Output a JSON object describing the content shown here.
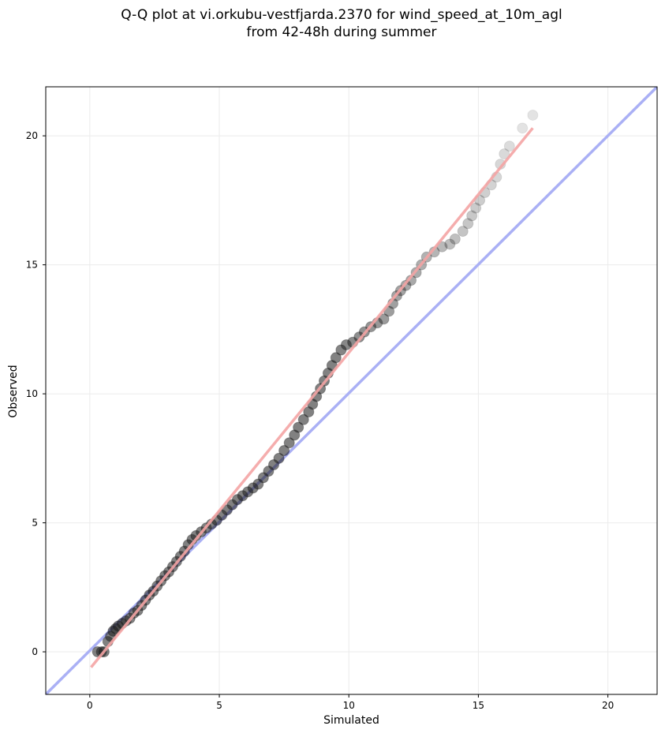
{
  "chart_data": {
    "type": "scatter",
    "title_line1": "Q-Q plot at vi.orkubu-vestfjarda.2370 for wind_speed_at_10m_agl",
    "title_line2": "from 42-48h during summer",
    "xlabel": "Simulated",
    "ylabel": "Observed",
    "xlim": [
      -1.7,
      21.9
    ],
    "ylim": [
      -1.65,
      21.9
    ],
    "xticks": [
      0,
      5,
      10,
      15,
      20
    ],
    "yticks": [
      0,
      5,
      10,
      15,
      20
    ],
    "grid": true,
    "identity_line": {
      "color": "#aab0f5",
      "from": [
        -1.7,
        -1.65
      ],
      "to": [
        21.9,
        21.9
      ]
    },
    "fit_line": {
      "color": "#f4a4a4",
      "from": [
        0.05,
        -0.6
      ],
      "to": [
        17.1,
        20.3
      ]
    },
    "series": [
      {
        "points": [
          [
            0.3,
            0.0
          ],
          [
            0.45,
            0.0
          ],
          [
            0.55,
            0.0
          ],
          [
            0.7,
            0.4
          ],
          [
            0.8,
            0.6
          ],
          [
            0.9,
            0.8
          ],
          [
            1.0,
            0.9
          ],
          [
            1.1,
            1.0
          ],
          [
            1.25,
            1.1
          ],
          [
            1.4,
            1.2
          ],
          [
            1.55,
            1.3
          ],
          [
            1.7,
            1.5
          ],
          [
            1.85,
            1.6
          ],
          [
            2.0,
            1.8
          ],
          [
            2.15,
            2.0
          ],
          [
            2.3,
            2.2
          ],
          [
            2.45,
            2.35
          ],
          [
            2.6,
            2.55
          ],
          [
            2.75,
            2.75
          ],
          [
            2.9,
            2.95
          ],
          [
            3.05,
            3.1
          ],
          [
            3.2,
            3.3
          ],
          [
            3.35,
            3.5
          ],
          [
            3.5,
            3.7
          ],
          [
            3.65,
            3.9
          ],
          [
            3.8,
            4.15
          ],
          [
            3.95,
            4.35
          ],
          [
            4.1,
            4.5
          ],
          [
            4.3,
            4.65
          ],
          [
            4.5,
            4.8
          ],
          [
            4.7,
            4.95
          ],
          [
            4.9,
            5.1
          ],
          [
            5.1,
            5.3
          ],
          [
            5.3,
            5.5
          ],
          [
            5.5,
            5.7
          ],
          [
            5.7,
            5.9
          ],
          [
            5.9,
            6.05
          ],
          [
            6.1,
            6.2
          ],
          [
            6.3,
            6.35
          ],
          [
            6.5,
            6.5
          ],
          [
            6.7,
            6.75
          ],
          [
            6.9,
            7.0
          ],
          [
            7.1,
            7.25
          ],
          [
            7.3,
            7.5
          ],
          [
            7.5,
            7.8
          ],
          [
            7.7,
            8.1
          ],
          [
            7.9,
            8.4
          ],
          [
            8.05,
            8.7
          ],
          [
            8.25,
            9.0
          ],
          [
            8.45,
            9.3
          ],
          [
            8.6,
            9.6
          ],
          [
            8.75,
            9.9
          ],
          [
            8.9,
            10.2
          ],
          [
            9.05,
            10.5
          ],
          [
            9.2,
            10.8
          ],
          [
            9.35,
            11.1
          ],
          [
            9.5,
            11.4
          ],
          [
            9.7,
            11.7
          ],
          [
            9.9,
            11.9
          ],
          [
            10.15,
            12.0
          ],
          [
            10.4,
            12.2
          ],
          [
            10.6,
            12.4
          ],
          [
            10.85,
            12.6
          ],
          [
            11.1,
            12.75
          ],
          [
            11.35,
            12.9
          ],
          [
            11.55,
            13.2
          ],
          [
            11.7,
            13.5
          ],
          [
            11.85,
            13.8
          ],
          [
            12.0,
            14.0
          ],
          [
            12.2,
            14.2
          ],
          [
            12.4,
            14.4
          ],
          [
            12.6,
            14.7
          ],
          [
            12.8,
            15.0
          ],
          [
            13.0,
            15.3
          ],
          [
            13.3,
            15.5
          ],
          [
            13.6,
            15.7
          ],
          [
            13.9,
            15.8
          ],
          [
            14.1,
            16.0
          ],
          [
            14.4,
            16.3
          ],
          [
            14.6,
            16.6
          ],
          [
            14.75,
            16.9
          ],
          [
            14.9,
            17.2
          ],
          [
            15.05,
            17.5
          ],
          [
            15.25,
            17.8
          ],
          [
            15.5,
            18.1
          ],
          [
            15.7,
            18.4
          ],
          [
            15.85,
            18.9
          ],
          [
            16.0,
            19.3
          ],
          [
            16.2,
            19.6
          ],
          [
            16.7,
            20.3
          ],
          [
            17.1,
            20.8
          ]
        ]
      }
    ]
  }
}
